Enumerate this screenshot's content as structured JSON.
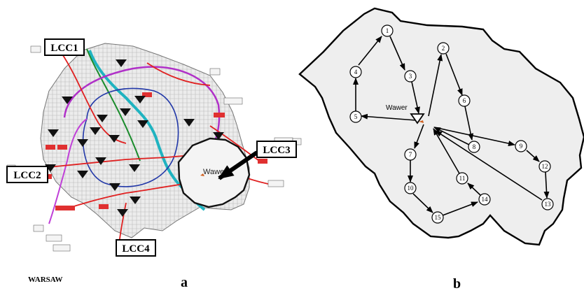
{
  "map": {
    "lcc_labels": [
      "LCC1",
      "LCC2",
      "LCC3",
      "LCC4"
    ],
    "district_label": "Wawer",
    "city_label": "WARSAW",
    "panel_label": "a"
  },
  "graph": {
    "center_label": "Wawer",
    "panel_label": "b",
    "nodes": [
      "1",
      "2",
      "3",
      "4",
      "5",
      "6",
      "7",
      "8",
      "9",
      "10",
      "11",
      "12",
      "13",
      "14",
      "15"
    ]
  }
}
